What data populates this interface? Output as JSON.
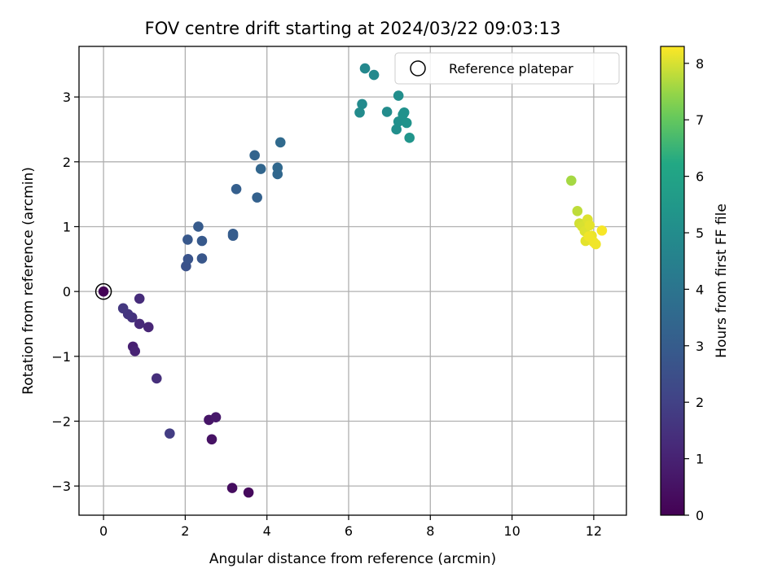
{
  "chart_data": {
    "type": "scatter",
    "title": "FOV centre drift starting at 2024/03/22 09:03:13",
    "xlabel": "Angular distance from reference (arcmin)",
    "ylabel": "Rotation from reference (arcmin)",
    "xlim": [
      -0.6,
      12.8
    ],
    "ylim": [
      -3.45,
      3.78
    ],
    "xticks": [
      0,
      2,
      4,
      6,
      8,
      10,
      12
    ],
    "yticks": [
      -3,
      -2,
      -1,
      0,
      1,
      2,
      3
    ],
    "grid": true,
    "legend": {
      "position": "top-right",
      "entries": [
        "Reference platepar"
      ]
    },
    "colorbar": {
      "label": "Hours from first FF file",
      "range": [
        0,
        8.3
      ],
      "ticks": [
        0,
        1,
        2,
        3,
        4,
        5,
        6,
        7,
        8
      ],
      "colormap": "viridis"
    },
    "reference_point": {
      "x": 0.0,
      "y": 0.0
    },
    "points": [
      {
        "x": 0.0,
        "y": 0.0,
        "t": 0.05
      },
      {
        "x": 3.55,
        "y": -3.1,
        "t": 0.25
      },
      {
        "x": 3.15,
        "y": -3.03,
        "t": 0.35
      },
      {
        "x": 2.65,
        "y": -2.28,
        "t": 0.5
      },
      {
        "x": 2.58,
        "y": -1.98,
        "t": 0.6
      },
      {
        "x": 2.75,
        "y": -1.94,
        "t": 0.7
      },
      {
        "x": 0.72,
        "y": -0.85,
        "t": 0.9
      },
      {
        "x": 0.77,
        "y": -0.92,
        "t": 1.0
      },
      {
        "x": 1.1,
        "y": -0.55,
        "t": 1.1
      },
      {
        "x": 0.88,
        "y": -0.5,
        "t": 1.2
      },
      {
        "x": 0.88,
        "y": -0.11,
        "t": 1.3
      },
      {
        "x": 1.3,
        "y": -1.34,
        "t": 1.4
      },
      {
        "x": 0.7,
        "y": -0.4,
        "t": 1.5
      },
      {
        "x": 0.6,
        "y": -0.35,
        "t": 1.6
      },
      {
        "x": 0.48,
        "y": -0.26,
        "t": 1.7
      },
      {
        "x": 1.62,
        "y": -2.19,
        "t": 1.85
      },
      {
        "x": 2.02,
        "y": 0.39,
        "t": 2.6
      },
      {
        "x": 2.07,
        "y": 0.5,
        "t": 2.7
      },
      {
        "x": 2.41,
        "y": 0.51,
        "t": 2.8
      },
      {
        "x": 2.06,
        "y": 0.8,
        "t": 2.85
      },
      {
        "x": 2.41,
        "y": 0.78,
        "t": 2.9
      },
      {
        "x": 2.32,
        "y": 1.0,
        "t": 2.95
      },
      {
        "x": 3.17,
        "y": 0.86,
        "t": 3.0
      },
      {
        "x": 3.17,
        "y": 0.89,
        "t": 3.05
      },
      {
        "x": 3.25,
        "y": 1.58,
        "t": 3.1
      },
      {
        "x": 3.76,
        "y": 1.45,
        "t": 3.2
      },
      {
        "x": 3.7,
        "y": 2.1,
        "t": 3.3
      },
      {
        "x": 3.85,
        "y": 1.89,
        "t": 3.4
      },
      {
        "x": 4.26,
        "y": 1.81,
        "t": 3.45
      },
      {
        "x": 4.26,
        "y": 1.91,
        "t": 3.5
      },
      {
        "x": 4.33,
        "y": 2.3,
        "t": 3.55
      },
      {
        "x": 6.4,
        "y": 3.44,
        "t": 4.8
      },
      {
        "x": 6.62,
        "y": 3.34,
        "t": 4.85
      },
      {
        "x": 6.33,
        "y": 2.89,
        "t": 4.9
      },
      {
        "x": 6.27,
        "y": 2.76,
        "t": 4.95
      },
      {
        "x": 6.94,
        "y": 2.77,
        "t": 5.0
      },
      {
        "x": 7.22,
        "y": 3.02,
        "t": 5.05
      },
      {
        "x": 7.17,
        "y": 2.5,
        "t": 5.1
      },
      {
        "x": 7.22,
        "y": 2.62,
        "t": 5.15
      },
      {
        "x": 7.36,
        "y": 2.76,
        "t": 5.2
      },
      {
        "x": 7.33,
        "y": 2.73,
        "t": 5.25
      },
      {
        "x": 7.42,
        "y": 2.6,
        "t": 5.3
      },
      {
        "x": 7.49,
        "y": 2.37,
        "t": 5.35
      },
      {
        "x": 11.45,
        "y": 1.71,
        "t": 7.6
      },
      {
        "x": 11.6,
        "y": 1.24,
        "t": 7.8
      },
      {
        "x": 11.65,
        "y": 1.05,
        "t": 7.95
      },
      {
        "x": 11.72,
        "y": 1.0,
        "t": 8.0
      },
      {
        "x": 11.78,
        "y": 0.93,
        "t": 8.05
      },
      {
        "x": 11.85,
        "y": 1.11,
        "t": 8.05
      },
      {
        "x": 11.9,
        "y": 1.02,
        "t": 8.1
      },
      {
        "x": 11.8,
        "y": 0.78,
        "t": 8.1
      },
      {
        "x": 11.95,
        "y": 0.86,
        "t": 8.15
      },
      {
        "x": 12.0,
        "y": 0.76,
        "t": 8.2
      },
      {
        "x": 12.05,
        "y": 0.73,
        "t": 8.2
      },
      {
        "x": 12.2,
        "y": 0.94,
        "t": 8.25
      },
      {
        "x": 11.88,
        "y": 0.85,
        "t": 8.2
      }
    ]
  }
}
